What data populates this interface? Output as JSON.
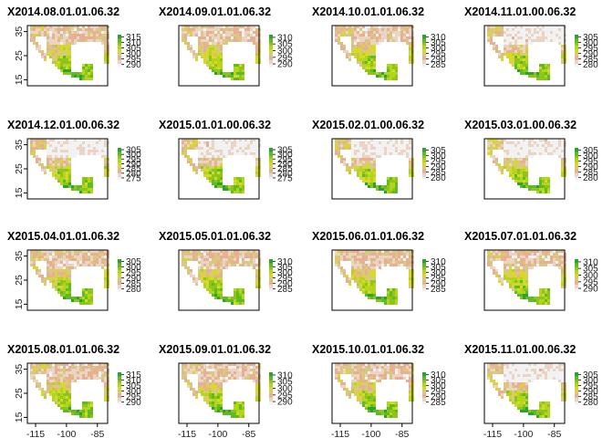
{
  "chart_data": {
    "type": "heatmap",
    "layout": {
      "rows": 4,
      "cols": 4
    },
    "x_ticks": [
      -115,
      -100,
      -85
    ],
    "y_ticks": [
      15,
      25,
      35
    ],
    "xlim": [
      -119,
      -80
    ],
    "ylim": [
      12.5,
      37.5
    ],
    "palette": [
      "#f2f2f2",
      "#ecd4c4",
      "#e8b092",
      "#d8c880",
      "#d6d82a",
      "#b3d51e",
      "#8ec51b",
      "#5fbb22",
      "#2aa52c"
    ],
    "legend_position": "right of each panel",
    "panels": [
      {
        "title": "X2014.08.01.01.06.32",
        "legend_ticks": [
          "315",
          "310",
          "305",
          "300",
          "295",
          "290"
        ],
        "range": [
          288,
          317
        ]
      },
      {
        "title": "X2014.09.01.01.06.32",
        "legend_ticks": [
          "310",
          "305",
          "300",
          "295",
          "290"
        ],
        "range": [
          288,
          312
        ]
      },
      {
        "title": "X2014.10.01.01.06.32",
        "legend_ticks": [
          "310",
          "305",
          "300",
          "295",
          "290",
          "285"
        ],
        "range": [
          283,
          312
        ]
      },
      {
        "title": "X2014.11.01.00.06.32",
        "legend_ticks": [
          "305",
          "300",
          "295",
          "290",
          "285",
          "280"
        ],
        "range": [
          278,
          307
        ]
      },
      {
        "title": "X2014.12.01.00.06.32",
        "legend_ticks": [
          "305",
          "300",
          "295",
          "290",
          "285",
          "280",
          "275"
        ],
        "range": [
          273,
          307
        ]
      },
      {
        "title": "X2015.01.01.00.06.32",
        "legend_ticks": [
          "305",
          "300",
          "295",
          "290",
          "285",
          "280",
          "275"
        ],
        "range": [
          273,
          307
        ]
      },
      {
        "title": "X2015.02.01.00.06.32",
        "legend_ticks": [
          "305",
          "300",
          "295",
          "290",
          "285",
          "280"
        ],
        "range": [
          278,
          307
        ]
      },
      {
        "title": "X2015.03.01.00.06.32",
        "legend_ticks": [
          "305",
          "300",
          "295",
          "290",
          "285",
          "280"
        ],
        "range": [
          278,
          307
        ]
      },
      {
        "title": "X2015.04.01.01.06.32",
        "legend_ticks": [
          "305",
          "300",
          "295",
          "290",
          "285",
          "280"
        ],
        "range": [
          278,
          307
        ]
      },
      {
        "title": "X2015.05.01.01.06.32",
        "legend_ticks": [
          "310",
          "305",
          "300",
          "295",
          "290",
          "285"
        ],
        "range": [
          283,
          312
        ]
      },
      {
        "title": "X2015.06.01.01.06.32",
        "legend_ticks": [
          "310",
          "305",
          "300",
          "295",
          "290",
          "285"
        ],
        "range": [
          283,
          312
        ]
      },
      {
        "title": "X2015.07.01.01.06.32",
        "legend_ticks": [
          "310",
          "305",
          "300",
          "295",
          "290"
        ],
        "range": [
          288,
          312
        ]
      },
      {
        "title": "X2015.08.01.01.06.32",
        "legend_ticks": [
          "315",
          "310",
          "305",
          "300",
          "295",
          "290"
        ],
        "range": [
          288,
          317
        ]
      },
      {
        "title": "X2015.09.01.01.06.32",
        "legend_ticks": [
          "310",
          "305",
          "300",
          "295",
          "290"
        ],
        "range": [
          288,
          312
        ]
      },
      {
        "title": "X2015.10.01.01.06.32",
        "legend_ticks": [
          "310",
          "305",
          "300",
          "295",
          "290",
          "285"
        ],
        "range": [
          283,
          312
        ]
      },
      {
        "title": "X2015.11.01.00.06.32",
        "legend_ticks": [
          "305",
          "300",
          "295",
          "290",
          "285",
          "280"
        ],
        "range": [
          278,
          307
        ]
      }
    ]
  }
}
